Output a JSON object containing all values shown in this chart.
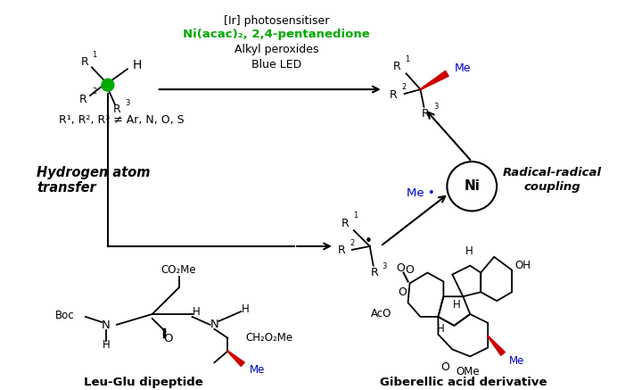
{
  "bg_color": "#ffffff",
  "ir_text": "[Ir] photosensitiser",
  "ni_text": "Ni(acac)₂, 2,4-pentanedione",
  "alkyl_text": "Alkyl peroxides",
  "led_text": "Blue LED",
  "r_condition": "R¹, R², R³ ≠ Ar, N, O, S",
  "hat_line1": "Hydrogen atom",
  "hat_line2": "transfer",
  "rrc_line1": "Radical-radical",
  "rrc_line2": "coupling",
  "ni_label": "Ni",
  "me_radical": "Me •",
  "leu_glu_label": "Leu-Glu dipeptide",
  "gib_label": "Giberellic acid derivative",
  "green_color": "#00aa00",
  "blue_color": "#0000cc",
  "red_color": "#cc0000",
  "black_color": "#000000"
}
